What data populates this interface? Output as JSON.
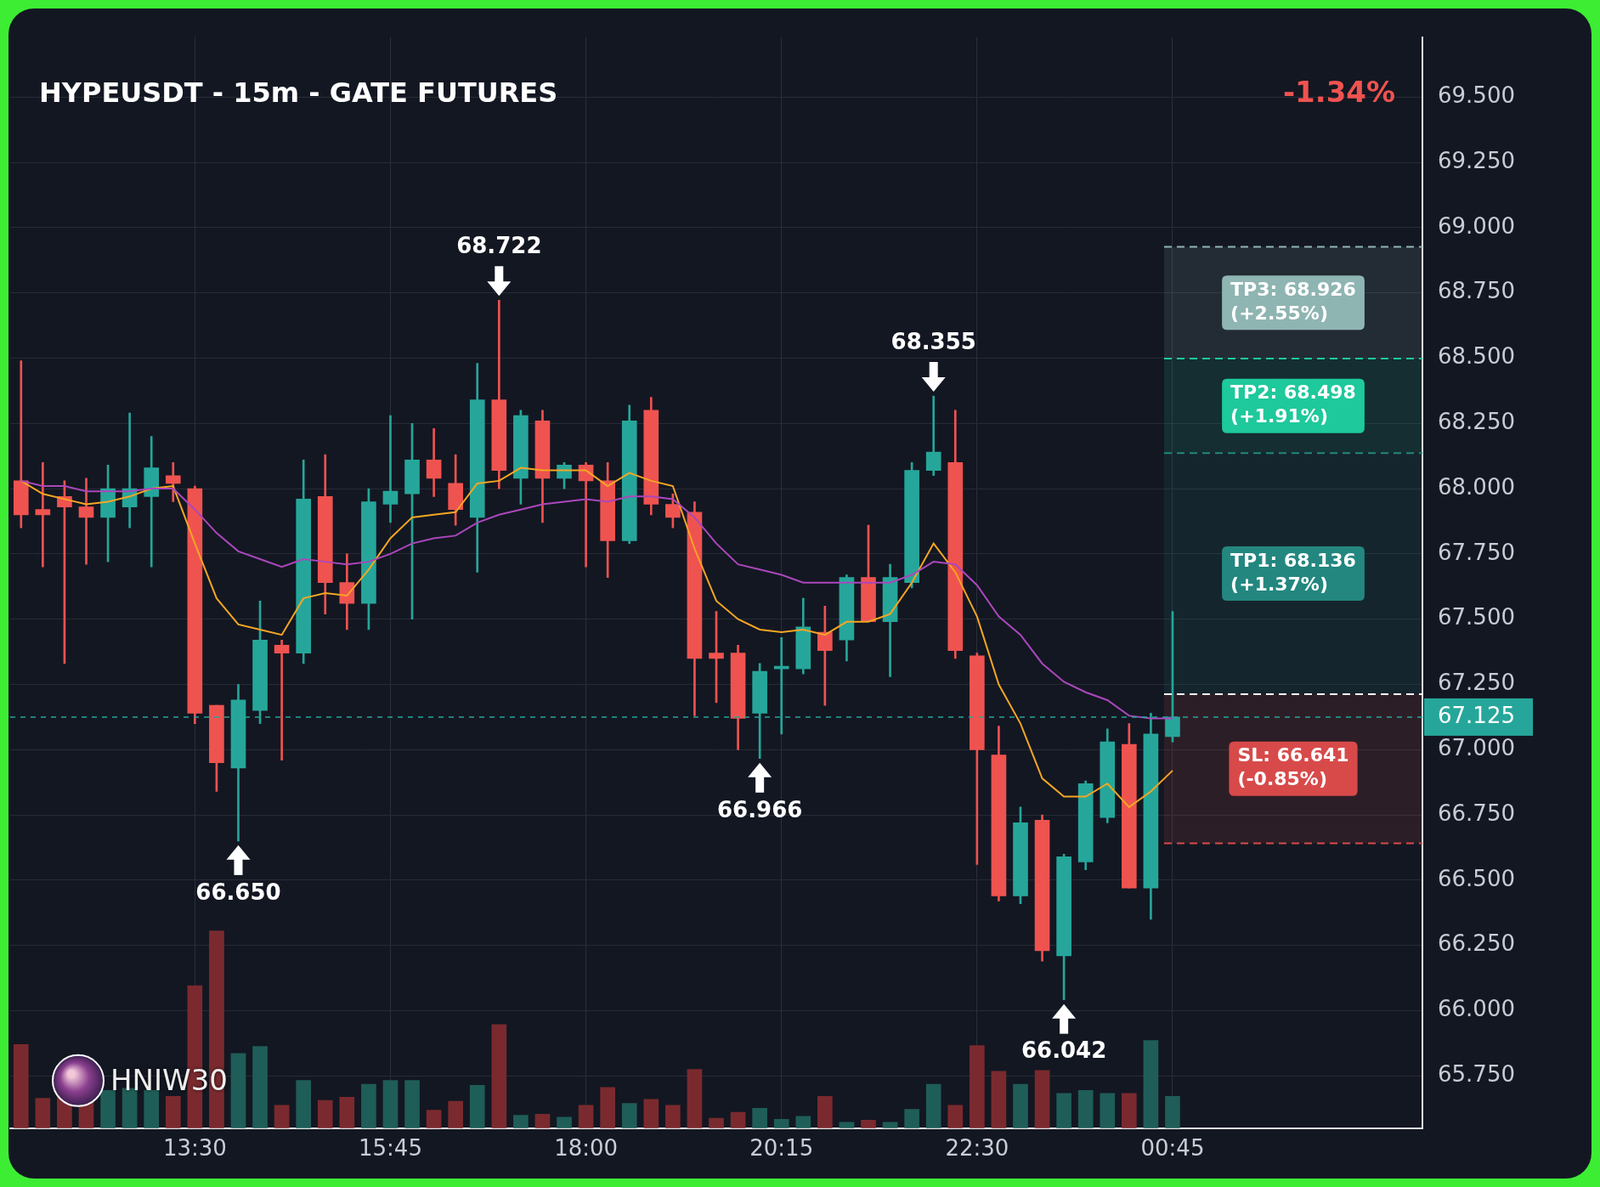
{
  "chart_data": {
    "type": "candlestick",
    "title": "HYPEUSDT - 15m - GATE FUTURES",
    "change_label": "-1.34%",
    "watermark": "HNIW30",
    "grid": true,
    "categories": [
      null,
      null,
      null,
      null,
      null,
      null,
      null,
      null,
      "13:30",
      null,
      null,
      null,
      null,
      null,
      null,
      null,
      null,
      "15:45",
      null,
      null,
      null,
      null,
      null,
      null,
      null,
      null,
      "18:00",
      null,
      null,
      null,
      null,
      null,
      null,
      null,
      null,
      "20:15",
      null,
      null,
      null,
      null,
      null,
      null,
      null,
      null,
      "22:30",
      null,
      null,
      null,
      null,
      null,
      null,
      null,
      null,
      "00:45",
      null,
      null,
      null,
      null,
      null,
      null,
      null,
      null,
      null,
      null,
      null
    ],
    "open": [
      68.03,
      67.92,
      67.97,
      67.93,
      67.89,
      67.93,
      67.97,
      68.05,
      68.0,
      67.17,
      66.93,
      67.15,
      67.4,
      67.37,
      67.97,
      67.64,
      67.56,
      67.94,
      67.98,
      68.11,
      68.02,
      67.89,
      68.34,
      68.04,
      68.26,
      68.04,
      68.09,
      68.03,
      67.8,
      68.3,
      67.94,
      67.91,
      67.37,
      67.37,
      67.14,
      67.31,
      67.31,
      67.45,
      67.42,
      67.66,
      67.49,
      67.64,
      68.07,
      68.1,
      67.36,
      66.98,
      66.44,
      66.73,
      66.21,
      66.57,
      66.74,
      67.02,
      66.47,
      67.05,
      null,
      null,
      null,
      null,
      null,
      null,
      null,
      null,
      null,
      null,
      null
    ],
    "high": [
      68.49,
      68.1,
      68.03,
      68.04,
      68.09,
      68.29,
      68.2,
      68.1,
      68.01,
      67.17,
      67.25,
      67.57,
      67.42,
      68.11,
      68.13,
      67.75,
      68.0,
      68.28,
      68.25,
      68.23,
      68.13,
      68.48,
      68.722,
      68.3,
      68.3,
      68.1,
      68.1,
      68.1,
      68.32,
      68.35,
      67.98,
      67.95,
      67.53,
      67.4,
      67.33,
      67.43,
      67.58,
      67.55,
      67.67,
      67.86,
      67.71,
      68.1,
      68.355,
      68.3,
      67.37,
      67.09,
      66.78,
      66.75,
      66.6,
      66.88,
      67.08,
      67.1,
      67.14,
      67.53,
      null,
      null,
      null,
      null,
      null,
      null,
      null,
      null,
      null,
      null,
      null
    ],
    "low": [
      67.85,
      67.7,
      67.33,
      67.71,
      67.72,
      67.85,
      67.7,
      67.95,
      67.1,
      66.84,
      66.65,
      67.1,
      66.96,
      67.33,
      67.52,
      67.46,
      67.46,
      67.87,
      67.5,
      67.97,
      67.86,
      67.68,
      68.0,
      67.94,
      67.87,
      68.0,
      67.7,
      67.66,
      67.79,
      67.9,
      67.85,
      67.13,
      67.18,
      67.0,
      66.966,
      67.06,
      67.29,
      67.17,
      67.34,
      67.49,
      67.28,
      67.62,
      68.05,
      67.35,
      66.56,
      66.42,
      66.41,
      66.19,
      66.042,
      66.54,
      66.72,
      66.47,
      66.35,
      67.03,
      null,
      null,
      null,
      null,
      null,
      null,
      null,
      null,
      null,
      null,
      null
    ],
    "close": [
      67.9,
      67.9,
      67.93,
      67.89,
      68.0,
      68.0,
      68.08,
      68.02,
      67.14,
      66.95,
      67.19,
      67.42,
      67.37,
      67.96,
      67.64,
      67.56,
      67.95,
      67.99,
      68.11,
      68.04,
      67.92,
      68.34,
      68.07,
      68.28,
      68.04,
      68.09,
      68.03,
      67.8,
      68.26,
      67.94,
      67.89,
      67.35,
      67.35,
      67.12,
      67.3,
      67.32,
      67.47,
      67.38,
      67.66,
      67.49,
      67.66,
      68.07,
      68.14,
      67.38,
      67.0,
      66.44,
      66.72,
      66.23,
      66.59,
      66.87,
      67.03,
      66.47,
      67.06,
      67.125,
      null,
      null,
      null,
      null,
      null,
      null,
      null,
      null,
      null,
      null,
      null
    ],
    "volume": {
      "axis": "y2",
      "values": [
        84,
        30,
        42,
        40,
        38,
        40,
        38,
        32,
        143,
        198,
        75,
        82,
        23,
        48,
        28,
        31,
        44,
        48,
        48,
        18,
        27,
        43,
        104,
        13,
        14,
        11,
        23,
        41,
        25,
        29,
        23,
        59,
        10,
        16,
        20,
        9,
        12,
        32,
        6,
        8,
        6,
        19,
        44,
        23,
        83,
        57,
        44,
        58,
        35,
        38,
        35,
        35,
        88,
        32,
        null,
        null,
        null,
        null,
        null,
        null,
        null,
        null,
        null,
        null,
        null
      ]
    },
    "moving_averages": [
      {
        "color": "#f5a623",
        "values": [
          68.03,
          67.98,
          67.96,
          67.94,
          67.95,
          67.97,
          68.0,
          68.01,
          67.79,
          67.58,
          67.48,
          67.46,
          67.44,
          67.58,
          67.6,
          67.59,
          67.69,
          67.81,
          67.89,
          67.9,
          67.91,
          68.02,
          68.03,
          68.08,
          68.07,
          68.07,
          68.07,
          68.01,
          68.06,
          68.03,
          68.01,
          67.77,
          67.57,
          67.5,
          67.46,
          67.45,
          67.46,
          67.44,
          67.49,
          67.49,
          67.52,
          67.64,
          67.79,
          67.68,
          67.51,
          67.25,
          67.1,
          66.89,
          66.82,
          66.82,
          66.87,
          66.78,
          66.84,
          66.92,
          null,
          null,
          null,
          null,
          null,
          null,
          null,
          null,
          null,
          null,
          null
        ]
      },
      {
        "color": "#ab47bc",
        "values": [
          68.03,
          68.01,
          68.01,
          67.99,
          67.99,
          67.99,
          68.0,
          68.0,
          67.92,
          67.83,
          67.76,
          67.73,
          67.7,
          67.73,
          67.72,
          67.71,
          67.72,
          67.75,
          67.79,
          67.81,
          67.82,
          67.87,
          67.9,
          67.92,
          67.94,
          67.95,
          67.96,
          67.95,
          67.97,
          67.97,
          67.96,
          67.89,
          67.79,
          67.71,
          67.69,
          67.67,
          67.64,
          67.64,
          67.64,
          67.64,
          67.64,
          67.67,
          67.72,
          67.71,
          67.63,
          67.51,
          67.44,
          67.33,
          67.26,
          67.22,
          67.19,
          67.13,
          67.12,
          67.12,
          null,
          null,
          null,
          null,
          null,
          null,
          null,
          null,
          null,
          null,
          null
        ]
      }
    ],
    "annotations": [
      {
        "value": 68.722,
        "label": "68.722",
        "marker": "arrow_down"
      },
      {
        "value": 68.355,
        "label": "68.355",
        "marker": "arrow_down"
      },
      {
        "value": 66.65,
        "label": "66.650",
        "marker": "arrow_up"
      },
      {
        "value": 66.966,
        "label": "66.966",
        "marker": "arrow_up"
      },
      {
        "value": 66.042,
        "label": "66.042",
        "marker": "arrow_up"
      }
    ],
    "entry": 67.213,
    "last_price": {
      "value": 67.125,
      "label": "67.125"
    },
    "levels": [
      {
        "label": "TP3: 68.926",
        "value": 68.926,
        "change_label": "(+2.55%)",
        "color": "#8fb5b2"
      },
      {
        "label": "TP2: 68.498",
        "value": 68.498,
        "change_label": "(+1.91%)",
        "color": "#1ec99b"
      },
      {
        "label": "TP1: 68.136",
        "value": 68.136,
        "change_label": "(+1.37%)",
        "color": "#23877f"
      },
      {
        "label": "SL: 66.641",
        "value": 66.641,
        "change_label": "(-0.85%)",
        "color": "#d84a4a"
      }
    ],
    "ylim": [
      65.55,
      69.73
    ],
    "yticks": [
      {
        "value": 65.75,
        "label": "65.750"
      },
      {
        "value": 66.0,
        "label": "66.000"
      },
      {
        "value": 66.25,
        "label": "66.250"
      },
      {
        "value": 66.5,
        "label": "66.500"
      },
      {
        "value": 66.75,
        "label": "66.750"
      },
      {
        "value": 67.0,
        "label": "67.000"
      },
      {
        "value": 67.25,
        "label": "67.250"
      },
      {
        "value": 67.5,
        "label": "67.500"
      },
      {
        "value": 67.75,
        "label": "67.750"
      },
      {
        "value": 68.0,
        "label": "68.000"
      },
      {
        "value": 68.25,
        "label": "68.250"
      },
      {
        "value": 68.5,
        "label": "68.500"
      },
      {
        "value": 68.75,
        "label": "68.750"
      },
      {
        "value": 69.0,
        "label": "69.000"
      },
      {
        "value": 69.25,
        "label": "69.250"
      },
      {
        "value": 69.5,
        "label": "69.500"
      }
    ],
    "y2lim": [
      0,
      1095
    ]
  }
}
